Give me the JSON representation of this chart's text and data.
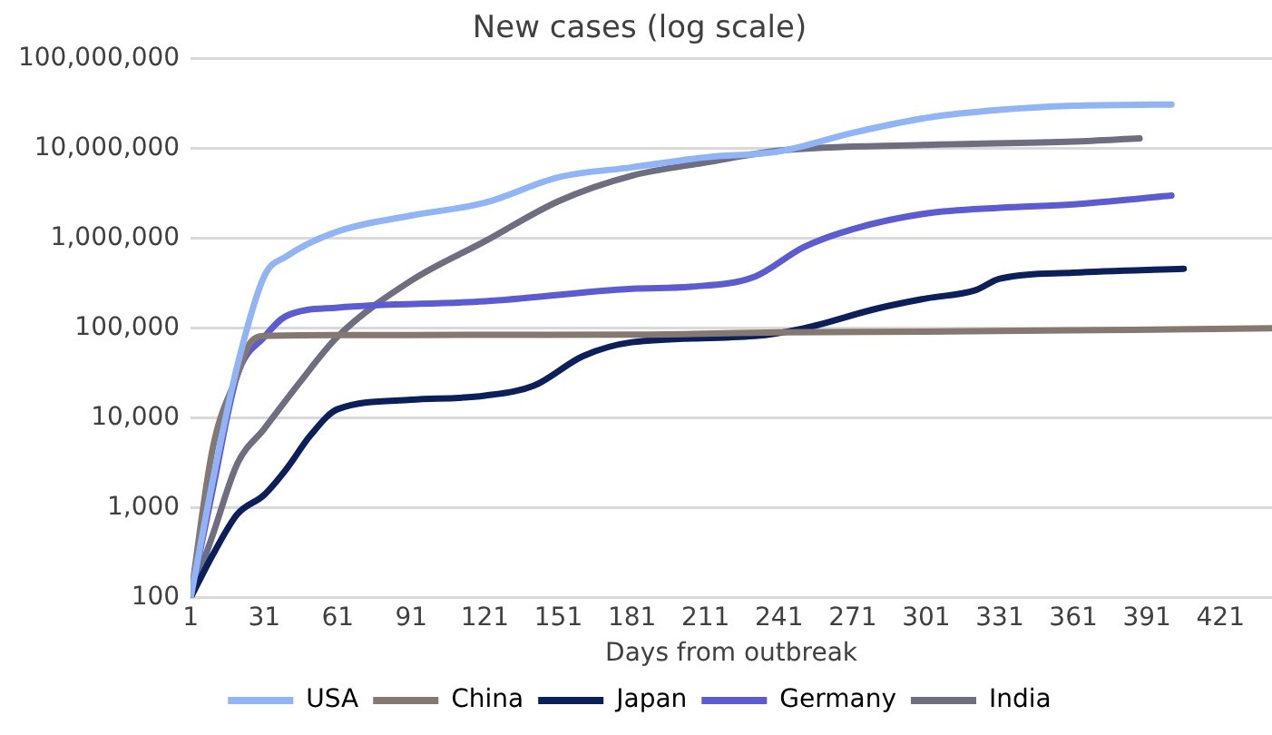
{
  "chart_data": {
    "type": "line",
    "title": "New cases (log scale)",
    "xlabel": "Days from outbreak",
    "log": "y",
    "grid": "y",
    "legend": "bottom",
    "marker": "none",
    "line_style": "solid",
    "xlim": [
      1,
      442
    ],
    "xticks": [
      1,
      31,
      61,
      91,
      121,
      151,
      181,
      211,
      241,
      271,
      301,
      331,
      361,
      391,
      421
    ],
    "ylim": [
      100,
      100000000
    ],
    "yticks": [
      {
        "value": 100,
        "label": "100"
      },
      {
        "value": 1000,
        "label": "1,000"
      },
      {
        "value": 10000,
        "label": "10,000"
      },
      {
        "value": 100000,
        "label": "100,000"
      },
      {
        "value": 1000000,
        "label": "1,000,000"
      },
      {
        "value": 10000000,
        "label": "10,000,000"
      },
      {
        "value": 100000000,
        "label": "100,000,000"
      }
    ],
    "series": [
      {
        "name": "USA",
        "color": "#8fb4f8",
        "x": [
          1,
          10,
          20,
          31,
          40,
          61,
          91,
          121,
          151,
          181,
          211,
          241,
          271,
          301,
          331,
          361,
          401
        ],
        "values": [
          100,
          2000,
          38000,
          380000,
          630000,
          1200000,
          1800000,
          2500000,
          4800000,
          6200000,
          8000000,
          9300000,
          15000000,
          22000000,
          27000000,
          30000000,
          31000000
        ]
      },
      {
        "name": "China",
        "color": "#857870",
        "x": [
          1,
          10,
          20,
          25,
          31,
          61,
          121,
          181,
          241,
          301,
          361,
          401,
          442
        ],
        "values": [
          100,
          4600,
          30000,
          67000,
          82000,
          84000,
          84500,
          85000,
          90000,
          92000,
          95000,
          97000,
          100000
        ]
      },
      {
        "name": "Japan",
        "color": "#0a1f5c",
        "x": [
          1,
          10,
          20,
          31,
          40,
          50,
          61,
          91,
          121,
          141,
          161,
          181,
          231,
          251,
          281,
          301,
          321,
          331,
          361,
          406
        ],
        "values": [
          100,
          300,
          850,
          1400,
          2700,
          6500,
          12600,
          16000,
          17800,
          23000,
          49000,
          70000,
          82000,
          100000,
          166000,
          215000,
          265000,
          356000,
          415000,
          460000
        ]
      },
      {
        "name": "Germany",
        "color": "#5b5bd6",
        "x": [
          1,
          10,
          20,
          31,
          40,
          61,
          121,
          181,
          205,
          231,
          251,
          271,
          301,
          331,
          361,
          401
        ],
        "values": [
          100,
          1600,
          30000,
          80000,
          137000,
          170000,
          200000,
          276000,
          290000,
          375000,
          800000,
          1270000,
          1900000,
          2200000,
          2400000,
          3000000
        ]
      },
      {
        "name": "India",
        "color": "#6e6e80",
        "x": [
          1,
          10,
          20,
          31,
          45,
          61,
          91,
          121,
          151,
          181,
          211,
          241,
          301,
          361,
          388
        ],
        "values": [
          100,
          500,
          3100,
          7600,
          24000,
          81000,
          340000,
          930000,
          2600000,
          5000000,
          7000000,
          9500000,
          11000000,
          12000000,
          13000000
        ]
      }
    ]
  }
}
